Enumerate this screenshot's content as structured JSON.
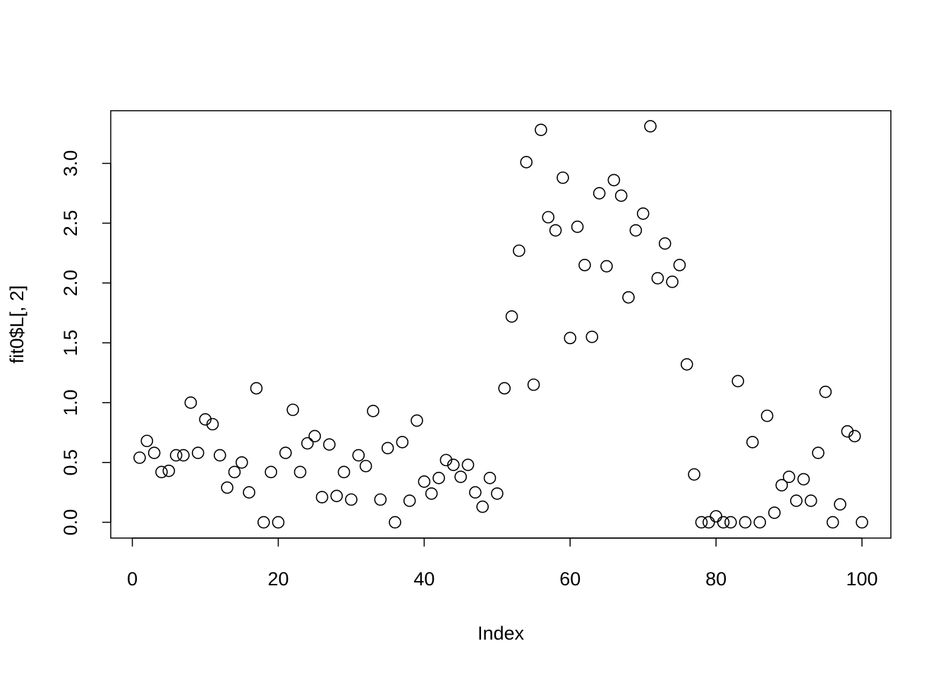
{
  "chart_data": {
    "type": "scatter",
    "x_label": "Index",
    "y_label": "fit0$L[, 2]",
    "x": [
      1,
      2,
      3,
      4,
      5,
      6,
      7,
      8,
      9,
      10,
      11,
      12,
      13,
      14,
      15,
      16,
      17,
      18,
      19,
      20,
      21,
      22,
      23,
      24,
      25,
      26,
      27,
      28,
      29,
      30,
      31,
      32,
      33,
      34,
      35,
      36,
      37,
      38,
      39,
      40,
      41,
      42,
      43,
      44,
      45,
      46,
      47,
      48,
      49,
      50,
      51,
      52,
      53,
      54,
      55,
      56,
      57,
      58,
      59,
      60,
      61,
      62,
      63,
      64,
      65,
      66,
      67,
      68,
      69,
      70,
      71,
      72,
      73,
      74,
      75,
      76,
      77,
      78,
      79,
      80,
      81,
      82,
      83,
      84,
      85,
      86,
      87,
      88,
      89,
      90,
      91,
      92,
      93,
      94,
      95,
      96,
      97,
      98,
      99,
      100
    ],
    "values": [
      0.54,
      0.68,
      0.58,
      0.42,
      0.43,
      0.56,
      0.56,
      1.0,
      0.58,
      0.86,
      0.82,
      0.56,
      0.29,
      0.42,
      0.5,
      0.25,
      1.12,
      0,
      0.42,
      0,
      0.58,
      0.94,
      0.42,
      0.66,
      0.72,
      0.21,
      0.65,
      0.22,
      0.42,
      0.19,
      0.56,
      0.47,
      0.93,
      0.19,
      0.62,
      0,
      0.67,
      0.18,
      0.85,
      0.34,
      0.24,
      0.37,
      0.52,
      0.48,
      0.38,
      0.48,
      0.25,
      0.13,
      0.37,
      0.24,
      1.12,
      1.72,
      2.27,
      3.01,
      1.15,
      3.28,
      2.55,
      2.44,
      2.88,
      1.54,
      2.47,
      2.15,
      1.55,
      2.75,
      2.14,
      2.86,
      2.73,
      1.88,
      2.44,
      2.58,
      3.31,
      2.04,
      2.33,
      2.01,
      2.15,
      1.32,
      0.4,
      0,
      0,
      0.05,
      0,
      0,
      1.18,
      0,
      0.67,
      0,
      0.89,
      0.08,
      0.31,
      0.38,
      0.18,
      0.36,
      0.18,
      0.58,
      1.09,
      0,
      0.15,
      0.76,
      0.72,
      0
    ],
    "color": "#000000",
    "xlim": [
      -2.96,
      103.96
    ],
    "ylim": [
      -0.132,
      3.44
    ],
    "xticks": [
      0,
      20,
      40,
      60,
      80,
      100
    ],
    "yticks": [
      {
        "value": 0,
        "label": "0.0"
      },
      0.5,
      {
        "value": 1,
        "label": "1.0"
      },
      1.5,
      {
        "value": 2,
        "label": "2.0"
      },
      2.5,
      {
        "value": 3,
        "label": "3.0"
      }
    ]
  }
}
